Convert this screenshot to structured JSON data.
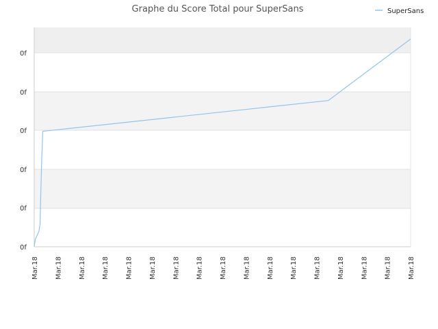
{
  "chart_data": {
    "type": "line",
    "title": "Graphe du Score Total pour SuperSans",
    "xlabel": "",
    "ylabel": "",
    "x_tick_labels": [
      "Mar.18",
      "Mar.18",
      "Mar.18",
      "Mar.18",
      "Mar.18",
      "Mar.18",
      "Mar.18",
      "Mar.18",
      "Mar.18",
      "Mar.18",
      "Mar.18",
      "Mar.18",
      "Mar.18",
      "Mar.18",
      "Mar.18",
      "Mar.18",
      "Mar.18"
    ],
    "y_tick_labels": [
      "0f",
      "0f",
      "0f",
      "0f",
      "0f",
      "0f"
    ],
    "xlim": [
      0,
      16
    ],
    "ylim": [
      0,
      5.7
    ],
    "grid": true,
    "legend_position": "top-right",
    "series": [
      {
        "name": "SuperSans",
        "color": "#90c4f0",
        "x": [
          0,
          0.05,
          0.2,
          0.25,
          0.28,
          0.32,
          0.34,
          0.36,
          12.5,
          16
        ],
        "y": [
          0,
          0.2,
          0.4,
          0.6,
          1.4,
          2.3,
          2.6,
          3.0,
          3.8,
          5.4
        ]
      }
    ]
  },
  "colors": {
    "band_dark": "#efefef",
    "band_light": "#f3f3f3",
    "gridline": "#e0e0e0",
    "axis": "#cccccc"
  }
}
